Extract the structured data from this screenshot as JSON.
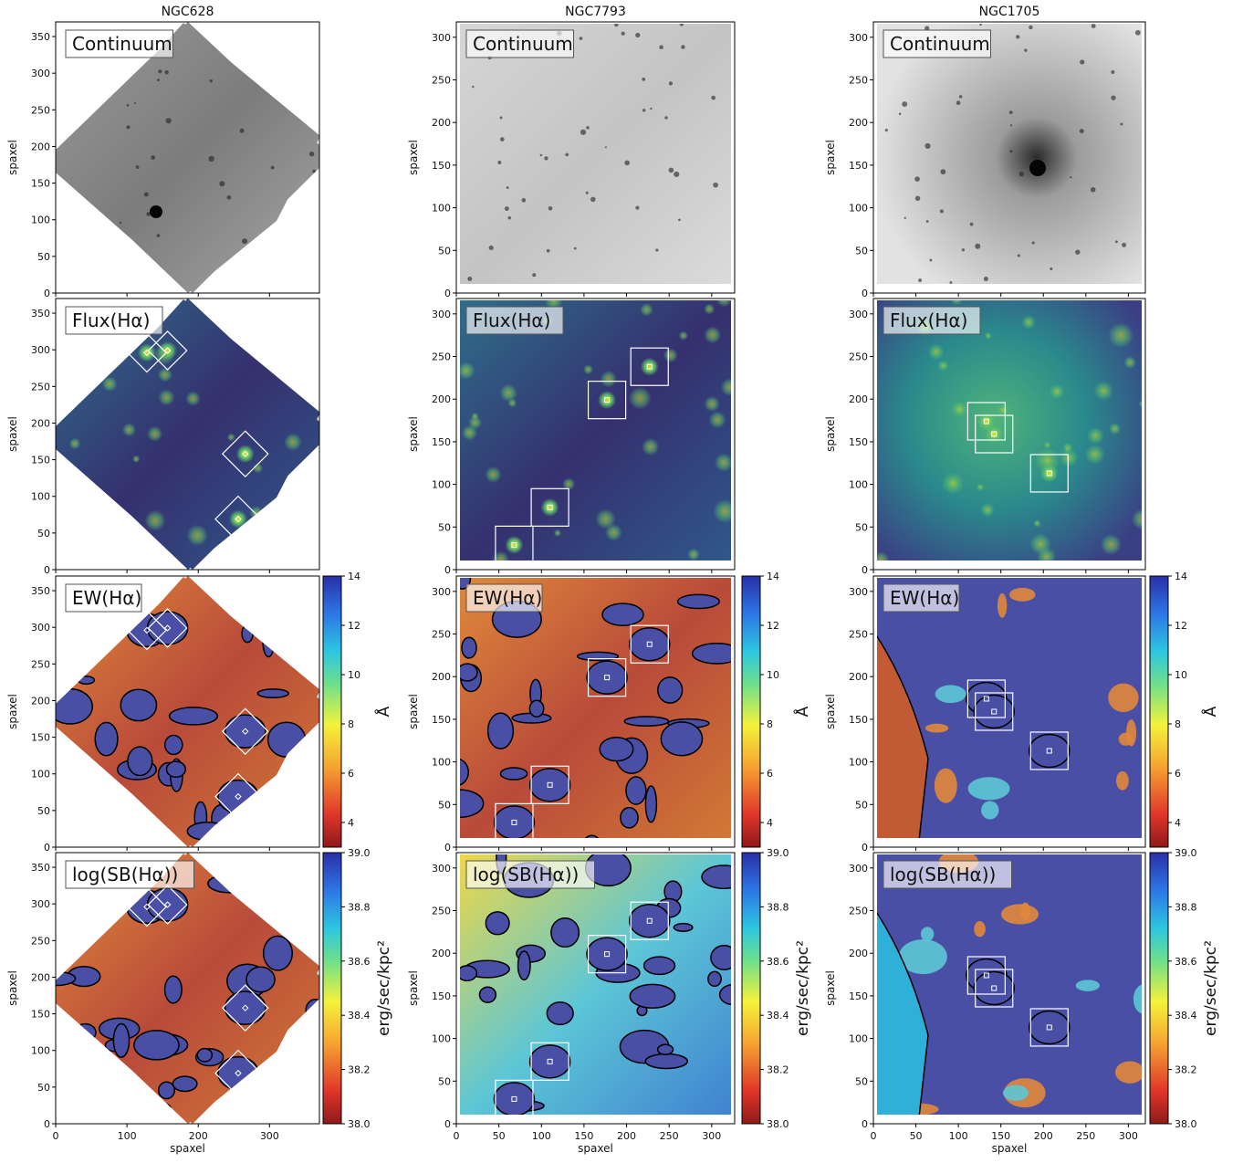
{
  "figure": {
    "columns": [
      "NGC628",
      "NGC7793",
      "NGC1705"
    ],
    "rows": [
      "Continuum",
      "Flux(Hα)",
      "EW(Hα)",
      "log(SB(Hα))"
    ],
    "xlabel": "spaxel",
    "ylabel": "spaxel"
  },
  "colorbars": [
    {
      "row": "EW(Hα)",
      "unit": "Å",
      "ticks": [
        "4",
        "6",
        "8",
        "10",
        "12",
        "14"
      ],
      "range": [
        3,
        14
      ]
    },
    {
      "row": "log(SB(Hα))",
      "unit": "erg/sec/kpc²",
      "ticks": [
        "38.0",
        "38.2",
        "38.4",
        "38.6",
        "38.8",
        "39.0"
      ],
      "range": [
        38.0,
        39.0
      ]
    }
  ],
  "colors": {
    "continuum_gray": "#8a8a8a",
    "viridis_low": "#3b1f66",
    "viridis_mid": "#2a7f8e",
    "viridis_high": "#cde11d",
    "jet_masked": "#4a4fa6",
    "jet_low": "#b8403a",
    "jet_high": "#2a3bb8",
    "aperture": "#ffffff",
    "contour": "#000000"
  },
  "chart_data": [
    {
      "galaxy": "NGC628",
      "type": "heatmap",
      "shape": "diamond",
      "x_ticks": [
        "0",
        "100",
        "200",
        "300"
      ],
      "y_ticks": [
        "0",
        "50",
        "100",
        "150",
        "200",
        "250",
        "300",
        "350"
      ],
      "xlim": [
        0,
        370
      ],
      "ylim": [
        0,
        370
      ],
      "apertures": [
        {
          "x": 128,
          "y": 296,
          "half": 27
        },
        {
          "x": 157,
          "y": 299,
          "half": 27
        },
        {
          "x": 266,
          "y": 158,
          "half": 32
        },
        {
          "x": 256,
          "y": 69,
          "half": 32
        }
      ]
    },
    {
      "galaxy": "NGC7793",
      "type": "heatmap",
      "shape": "square",
      "x_ticks": [
        "0",
        "50",
        "100",
        "150",
        "200",
        "250",
        "300"
      ],
      "y_ticks": [
        "0",
        "50",
        "100",
        "150",
        "200",
        "250",
        "300"
      ],
      "xlim": [
        0,
        327
      ],
      "ylim": [
        0,
        318
      ],
      "apertures": [
        {
          "x": 68,
          "y": 29,
          "half": 22
        },
        {
          "x": 110,
          "y": 73,
          "half": 22
        },
        {
          "x": 177,
          "y": 199,
          "half": 22
        },
        {
          "x": 227,
          "y": 238,
          "half": 22
        }
      ]
    },
    {
      "galaxy": "NGC1705",
      "type": "heatmap",
      "shape": "square",
      "x_ticks": [
        "0",
        "50",
        "100",
        "150",
        "200",
        "250",
        "300"
      ],
      "y_ticks": [
        "0",
        "50",
        "100",
        "150",
        "200",
        "250",
        "300"
      ],
      "xlim": [
        0,
        320
      ],
      "ylim": [
        0,
        318
      ],
      "apertures": [
        {
          "x": 133,
          "y": 174,
          "half": 22
        },
        {
          "x": 142,
          "y": 159,
          "half": 22
        },
        {
          "x": 207,
          "y": 113,
          "half": 22
        }
      ]
    }
  ]
}
